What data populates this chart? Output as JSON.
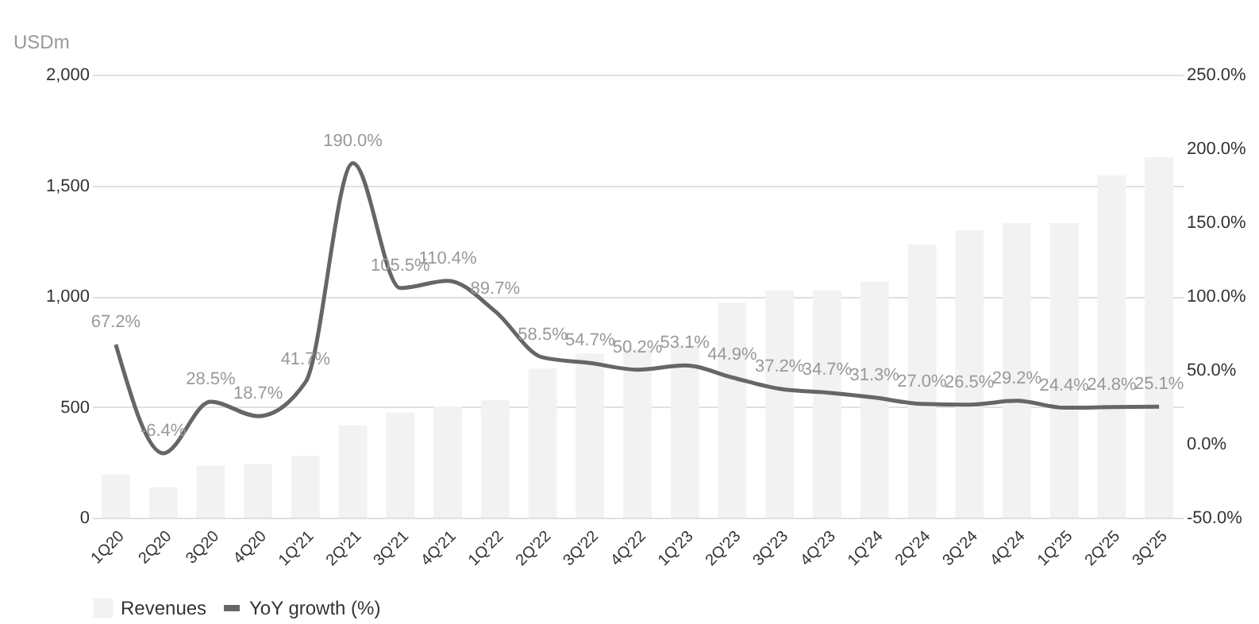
{
  "chart_data": {
    "type": "bar",
    "categories": [
      "1Q20",
      "2Q20",
      "3Q20",
      "4Q20",
      "1Q'21",
      "2Q'21",
      "3Q'21",
      "4Q'21",
      "1Q'22",
      "2Q'22",
      "3Q'22",
      "4Q'22",
      "1Q'23",
      "2Q'23",
      "3Q'23",
      "4Q'23",
      "1Q'24",
      "2Q'24",
      "3Q'24",
      "4Q'24",
      "1Q'25",
      "2Q'25",
      "3Q'25"
    ],
    "series": [
      {
        "name": "Revenues",
        "color": "#f2f2f2",
        "values": [
          194,
          137,
          236,
          240,
          280,
          417,
          474,
          502,
          530,
          673,
          740,
          760,
          780,
          970,
          1025,
          1025,
          1066,
          1233,
          1297,
          1330,
          1330,
          1545,
          1627
        ]
      },
      {
        "name": "YoY growth (%)",
        "type": "line",
        "axis": "y2",
        "color": "#666666",
        "values": [
          67.2,
          -6.4,
          28.5,
          18.7,
          41.7,
          190.0,
          105.5,
          110.4,
          89.7,
          58.5,
          54.7,
          50.2,
          53.1,
          44.9,
          37.2,
          34.7,
          31.3,
          27.0,
          26.5,
          29.2,
          24.4,
          24.8,
          25.1
        ],
        "value_labels": [
          "67.2%",
          "-6.4%",
          "28.5%",
          "18.7%",
          "41.7%",
          "190.0%",
          "105.5%",
          "110.4%",
          "89.7%",
          "58.5%",
          "54.7%",
          "50.2%",
          "53.1%",
          "44.9%",
          "37.2%",
          "34.7%",
          "31.3%",
          "27.0%",
          "26.5%",
          "29.2%",
          "24.4%",
          "24.8%",
          "25.1%"
        ]
      }
    ],
    "ylabel": "USDm",
    "ylim": [
      0,
      2000
    ],
    "yticks": [
      0,
      500,
      {
        "value": 1000,
        "label": "1,000"
      },
      {
        "value": 1500,
        "label": "1,500"
      },
      {
        "value": 2000,
        "label": "2,000"
      }
    ],
    "y2lim": [
      -50,
      250
    ],
    "y2ticks": [
      {
        "value": -50,
        "label": "-50.0%"
      },
      {
        "value": 0,
        "label": "0.0%"
      },
      {
        "value": 50,
        "label": "50.0%"
      },
      {
        "value": 100,
        "label": "100.0%"
      },
      {
        "value": 150,
        "label": "150.0%"
      },
      {
        "value": 200,
        "label": "200.0%"
      },
      {
        "value": 250,
        "label": "250.0%"
      }
    ],
    "grid": "y",
    "legend": "bottom"
  }
}
